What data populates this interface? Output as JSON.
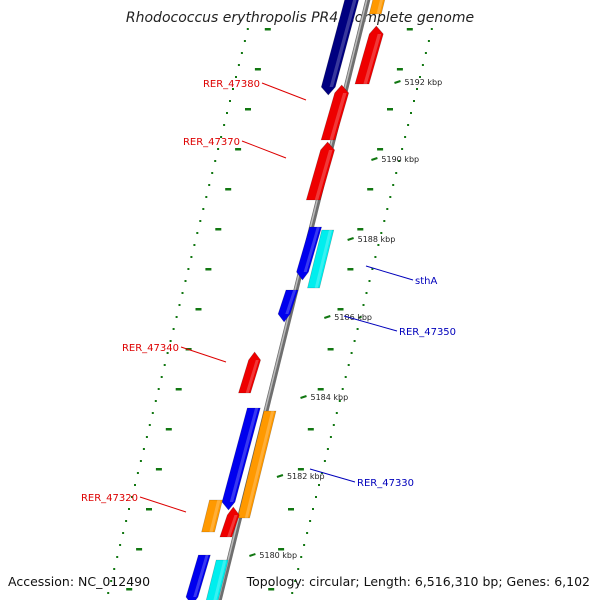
{
  "title": "Rhodococcus erythropolis PR4, complete genome",
  "footer": {
    "accession": "Accession: NC_012490",
    "topology": "Topology: circular; Length: 6,516,310 bp; Genes: 6,102"
  },
  "colors": {
    "reverse_labels": "#dd0000",
    "forward_labels": "#0000bb",
    "red_genes": "#ee0000",
    "navy_genes": "#000080",
    "blue_genes": "#0000ee",
    "cyan_genes": "#00eeee",
    "orange_genes": "#ff9900",
    "backbone": "#888888",
    "ticks": "#117711"
  },
  "ticks": [
    "5180 kbp",
    "5182 kbp",
    "5184 kbp",
    "5186 kbp",
    "5188 kbp",
    "5190 kbp",
    "5192 kbp"
  ],
  "gene_labels": [
    {
      "id": "RER_47380",
      "strand": "reverse"
    },
    {
      "id": "RER_47370",
      "strand": "reverse"
    },
    {
      "id": "RER_47340",
      "strand": "reverse"
    },
    {
      "id": "RER_47320",
      "strand": "reverse"
    },
    {
      "id": "sthA",
      "strand": "forward"
    },
    {
      "id": "RER_47350",
      "strand": "forward"
    },
    {
      "id": "RER_47330",
      "strand": "forward"
    }
  ]
}
